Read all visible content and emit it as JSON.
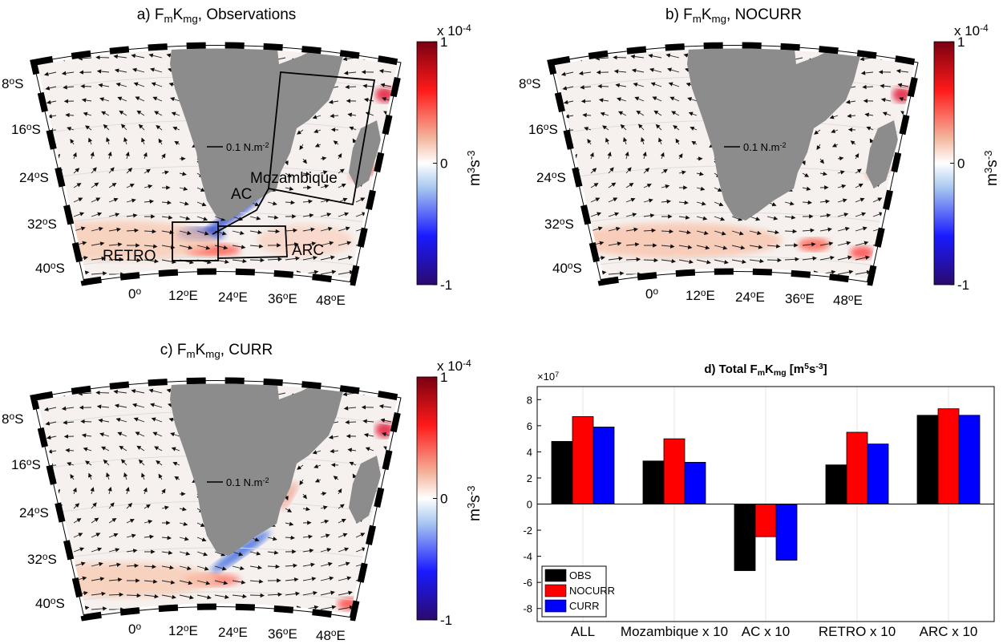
{
  "maps": {
    "panels": [
      {
        "title": {
          "a": "a) F",
          "b": "m",
          "c": "K",
          "d": "mg",
          "e": ", Observations"
        },
        "regions": [
          "Mozambique",
          "AC",
          "RETRO",
          "ARC"
        ]
      },
      {
        "title": {
          "a": "b) F",
          "b": "m",
          "c": "K",
          "d": "mg",
          "e": ", NOCURR"
        }
      },
      {
        "title": {
          "a": "c) F",
          "b": "m",
          "c": "K",
          "d": "mg",
          "e": ", CURR"
        }
      }
    ],
    "lat": [
      "8",
      "16",
      "24",
      "32",
      "40"
    ],
    "south": "S",
    "deg": "o",
    "lon": [
      {
        "deg": "0"
      },
      {
        "deg": "12",
        "hemi": "E"
      },
      {
        "deg": "24",
        "hemi": "E"
      },
      {
        "deg": "36",
        "hemi": "E"
      },
      {
        "deg": "48",
        "hemi": "E"
      }
    ],
    "scale": {
      "text": "0.1 N.m",
      "exp": "-2"
    },
    "colorbar": {
      "clim": [
        -1,
        1
      ],
      "ticks": [
        -1,
        0,
        1
      ],
      "mult": "x 10",
      "mult_exp": "-4",
      "unit": [
        "m",
        "3",
        "s",
        "-3"
      ]
    }
  },
  "chart_data": {
    "type": "bar",
    "title": {
      "a": "d) Total F",
      "b": "m",
      "c": "K",
      "d": "mg",
      "e": " [m",
      "f": "5",
      "g": "s",
      "h": "-3",
      "i": "]"
    },
    "multiplier": {
      "base": "×10",
      "exp": "7"
    },
    "categories": [
      "ALL",
      "Mozambique x 10",
      "AC x 10",
      "RETRO x 10",
      "ARC x 10"
    ],
    "series": [
      {
        "name": "OBS",
        "color": "#000000",
        "values": [
          4.8,
          3.3,
          -5.1,
          3.0,
          6.8
        ]
      },
      {
        "name": "NOCURR",
        "color": "#ff0000",
        "values": [
          6.7,
          5.0,
          -2.5,
          5.5,
          7.3
        ]
      },
      {
        "name": "CURR",
        "color": "#0000ff",
        "values": [
          5.9,
          3.2,
          -4.3,
          4.6,
          6.8
        ]
      }
    ],
    "ylim": [
      -9,
      9
    ],
    "yticks": [
      -8,
      -6,
      -4,
      -2,
      0,
      2,
      4,
      6,
      8
    ],
    "grid": "x",
    "legend": "lower left"
  }
}
